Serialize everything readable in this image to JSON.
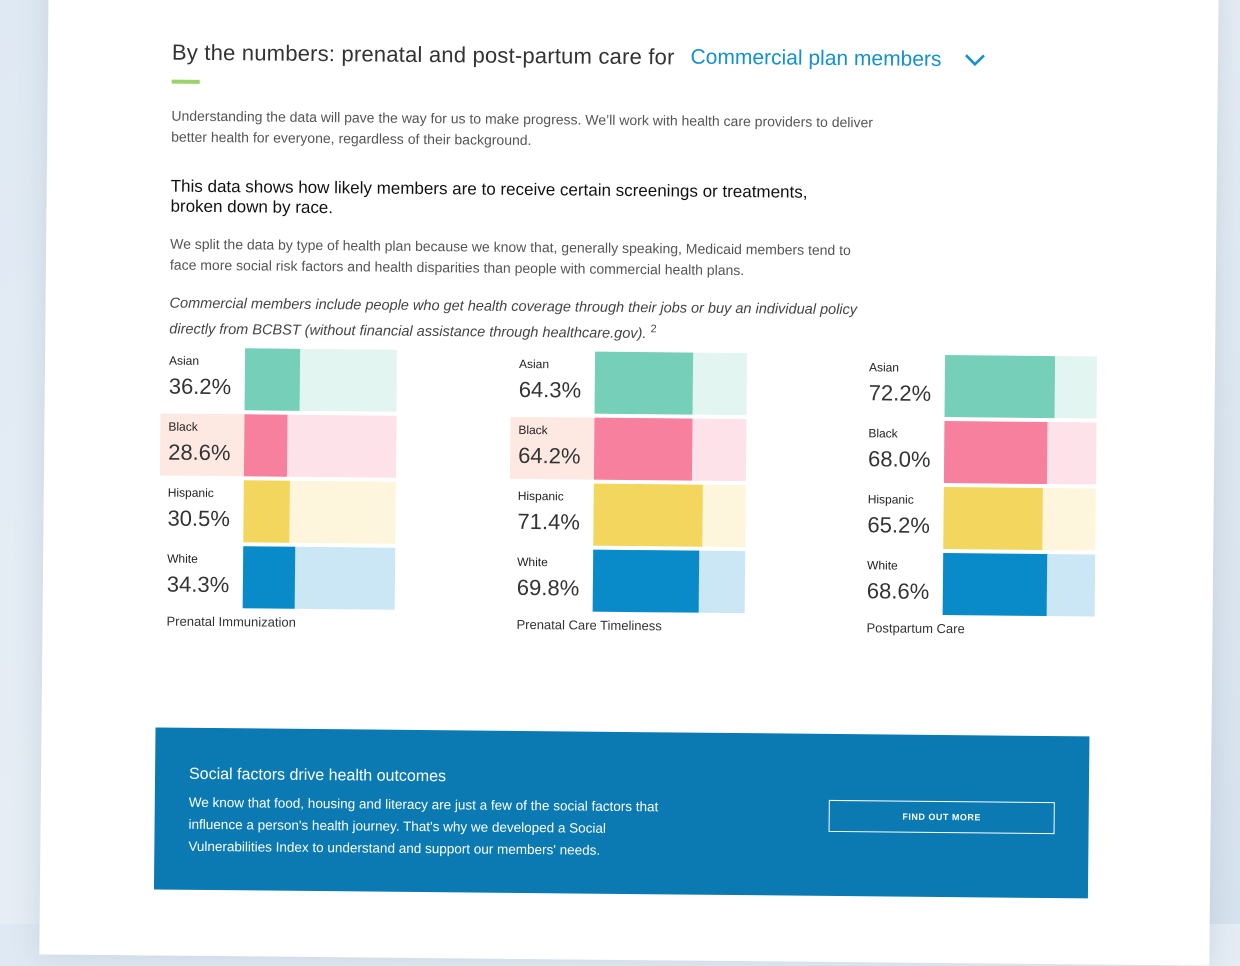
{
  "header": {
    "title": "By the numbers: prenatal and post-partum care for",
    "plan_selected": "Commercial plan members",
    "plan_icon": "chevron-down-icon"
  },
  "intro": "Understanding the data will pave the way for us to make progress. We’ll work with health care providers to deliver better health for everyone, regardless of their background.",
  "subheading": "This data shows how likely members are to receive certain screenings or treatments, broken down by race.",
  "split_text": "We split the data by type of health plan because we know that, generally speaking, Medicaid members tend to face more social risk factors and health disparities than people with commercial health plans.",
  "commercial_note": "Commercial members include people who get health coverage through their jobs or buy an individual policy directly from BCBST (without financial assistance through healthcare.gov).",
  "commercial_note_sup": "2",
  "colors": {
    "accent_line": "#9ad36b",
    "link": "#1390cf",
    "asian": "#76cfb8",
    "asian_light": "#e2f5f0",
    "black": "#f7809e",
    "black_light": "#fde2e9",
    "hispanic": "#f2d65e",
    "hispanic_light": "#fdf6dc",
    "white": "#0a8bc9",
    "white_light": "#cbe6f4",
    "banner": "#0b79b2"
  },
  "chart_data": [
    {
      "type": "bar",
      "title": "Prenatal Immunization",
      "categories": [
        "Asian",
        "Black",
        "Hispanic",
        "White"
      ],
      "values": [
        36.2,
        28.6,
        30.5,
        34.3
      ],
      "labels": [
        "36.2%",
        "28.6%",
        "30.5%",
        "34.3%"
      ],
      "ylim": [
        0,
        100
      ],
      "highlighted": "Black"
    },
    {
      "type": "bar",
      "title": "Prenatal Care Timeliness",
      "categories": [
        "Asian",
        "Black",
        "Hispanic",
        "White"
      ],
      "values": [
        64.3,
        64.2,
        71.4,
        69.8
      ],
      "labels": [
        "64.3%",
        "64.2%",
        "71.4%",
        "69.8%"
      ],
      "ylim": [
        0,
        100
      ],
      "highlighted": "Black"
    },
    {
      "type": "bar",
      "title": "Postpartum Care",
      "categories": [
        "Asian",
        "Black",
        "Hispanic",
        "White"
      ],
      "values": [
        72.2,
        68.0,
        65.2,
        68.6
      ],
      "labels": [
        "72.2%",
        "68.0%",
        "65.2%",
        "68.6%"
      ],
      "ylim": [
        0,
        100
      ]
    }
  ],
  "banner": {
    "title": "Social factors drive health outcomes",
    "text": "We know that food, housing and literacy are just a few of the social factors that influence a person's health journey. That's why we developed a Social Vulnerabilities Index to understand and support our members' needs.",
    "button_label": "FIND OUT MORE"
  }
}
